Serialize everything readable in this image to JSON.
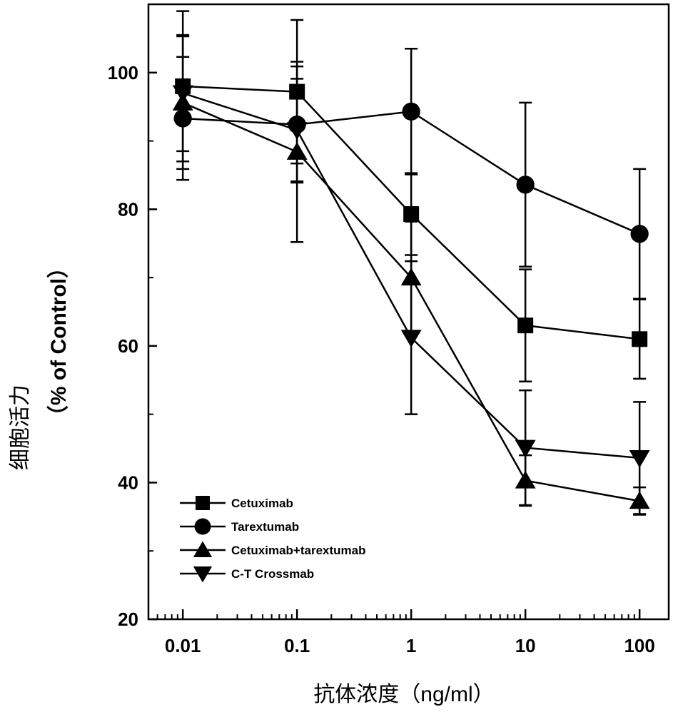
{
  "chart_data": {
    "type": "line",
    "xlabel": "抗体浓度（ng/ml）",
    "ylabel_line1": "细胞活力",
    "ylabel_line2": "（% of Control）",
    "x_scale": "log",
    "xlim": [
      0.005,
      180
    ],
    "ylim": [
      20,
      110
    ],
    "x_ticks": [
      0.01,
      0.1,
      1,
      10,
      100
    ],
    "x_tick_labels": [
      "0.01",
      "0.1",
      "1",
      "10",
      "100"
    ],
    "y_ticks": [
      20,
      40,
      60,
      80,
      100
    ],
    "y_tick_labels": [
      "20",
      "40",
      "60",
      "80",
      "100"
    ],
    "grid": false,
    "legend_position": "bottom-left",
    "x": [
      0.01,
      0.1,
      1,
      10,
      100
    ],
    "series": [
      {
        "name": "Cetuximab",
        "marker": "square",
        "values": [
          98.0,
          97.2,
          79.3,
          63.0,
          61.0
        ],
        "error": [
          11.0,
          10.5,
          6.0,
          8.2,
          5.8
        ]
      },
      {
        "name": "Tarextumab",
        "marker": "circle",
        "values": [
          93.3,
          92.4,
          94.3,
          83.6,
          76.4
        ],
        "error": [
          9.0,
          8.5,
          9.2,
          12.0,
          9.5
        ]
      },
      {
        "name": "Cetuximab+tarextumab",
        "marker": "triangle-up",
        "values": [
          95.6,
          88.4,
          70.0,
          40.3,
          37.3
        ],
        "error": [
          9.7,
          13.2,
          8.2,
          3.7,
          2.0
        ]
      },
      {
        "name": "C-T Crossmab",
        "marker": "triangle-down",
        "values": [
          97.0,
          91.6,
          61.2,
          45.1,
          43.6
        ],
        "error": [
          8.5,
          7.5,
          11.2,
          8.4,
          8.2
        ]
      }
    ]
  }
}
